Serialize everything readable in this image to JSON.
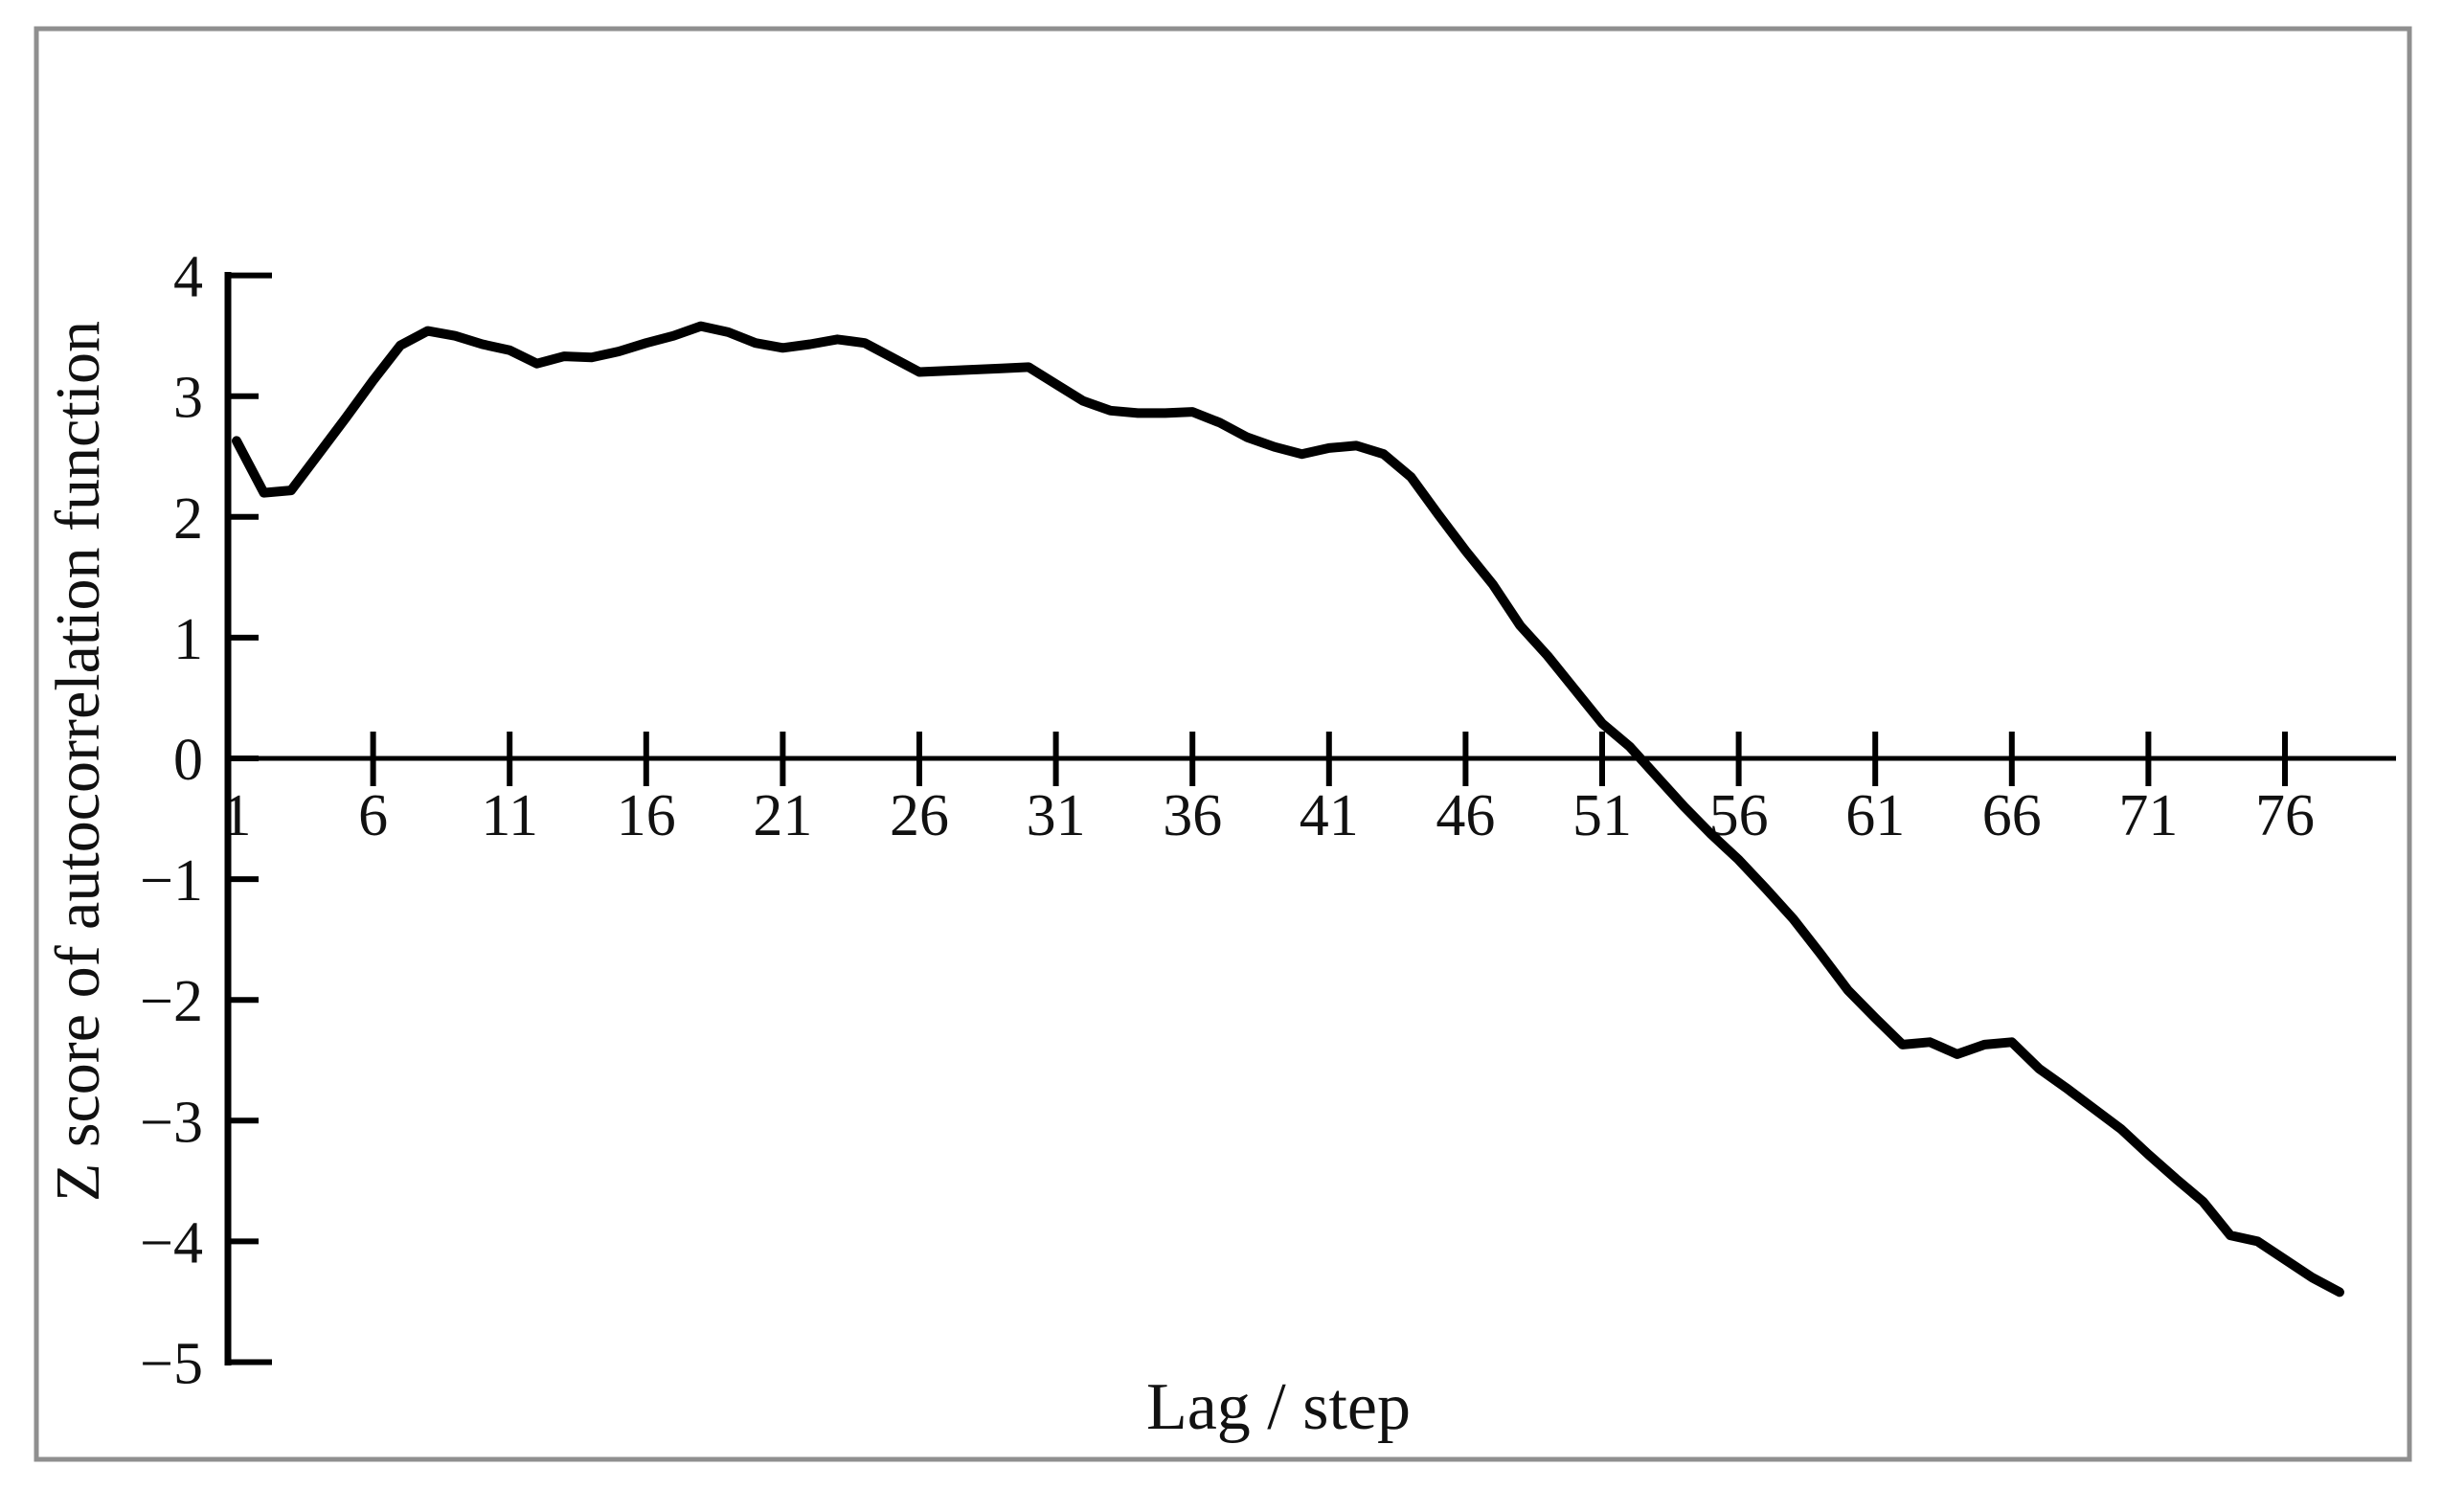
{
  "figure": {
    "x_axis_title": "Lag / step",
    "y_axis_title": "Z score of autocorrelation function",
    "frame_color": "#8f8f8f",
    "line_color": "#000000",
    "text_color": "#111111"
  },
  "chart_data": {
    "type": "line",
    "title": "",
    "xlabel": "Lag / step",
    "ylabel": "Z score of autocorrelation function",
    "x_ticks": [
      1,
      6,
      11,
      16,
      21,
      26,
      31,
      36,
      41,
      46,
      51,
      56,
      61,
      66,
      71,
      76
    ],
    "y_ticks": [
      4,
      3,
      2,
      1,
      0,
      -1,
      -2,
      -3,
      -4,
      -5
    ],
    "xlim": [
      1,
      80
    ],
    "ylim": [
      -5,
      4
    ],
    "grid": false,
    "legend": null,
    "series": [
      {
        "name": "Z score of autocorrelation function",
        "color": "#000000",
        "x": [
          1,
          2,
          3,
          4,
          5,
          6,
          7,
          8,
          9,
          10,
          11,
          12,
          13,
          14,
          15,
          16,
          17,
          18,
          19,
          20,
          21,
          22,
          23,
          24,
          25,
          26,
          27,
          28,
          29,
          30,
          31,
          32,
          33,
          34,
          35,
          36,
          37,
          38,
          39,
          40,
          41,
          42,
          43,
          44,
          45,
          46,
          47,
          48,
          49,
          50,
          51,
          52,
          53,
          54,
          55,
          56,
          57,
          58,
          59,
          60,
          61,
          62,
          63,
          64,
          65,
          66,
          67,
          68,
          69,
          70,
          71,
          72,
          73,
          74,
          75,
          76,
          77,
          78
        ],
        "y": [
          2.63,
          2.2,
          2.22,
          2.52,
          2.82,
          3.13,
          3.42,
          3.54,
          3.5,
          3.43,
          3.38,
          3.27,
          3.33,
          3.32,
          3.37,
          3.44,
          3.5,
          3.58,
          3.53,
          3.44,
          3.4,
          3.43,
          3.47,
          3.44,
          3.32,
          3.2,
          3.21,
          3.22,
          3.23,
          3.24,
          3.1,
          2.96,
          2.88,
          2.86,
          2.86,
          2.87,
          2.78,
          2.66,
          2.58,
          2.52,
          2.57,
          2.59,
          2.52,
          2.33,
          2.02,
          1.72,
          1.44,
          1.1,
          0.85,
          0.57,
          0.29,
          0.1,
          -0.15,
          -0.4,
          -0.63,
          -0.84,
          -1.08,
          -1.33,
          -1.62,
          -1.92,
          -2.15,
          -2.37,
          -2.35,
          -2.45,
          -2.37,
          -2.35,
          -2.57,
          -2.73,
          -2.9,
          -3.07,
          -3.28,
          -3.48,
          -3.67,
          -3.95,
          -4.0,
          -4.15,
          -4.3,
          -4.42
        ]
      }
    ]
  }
}
